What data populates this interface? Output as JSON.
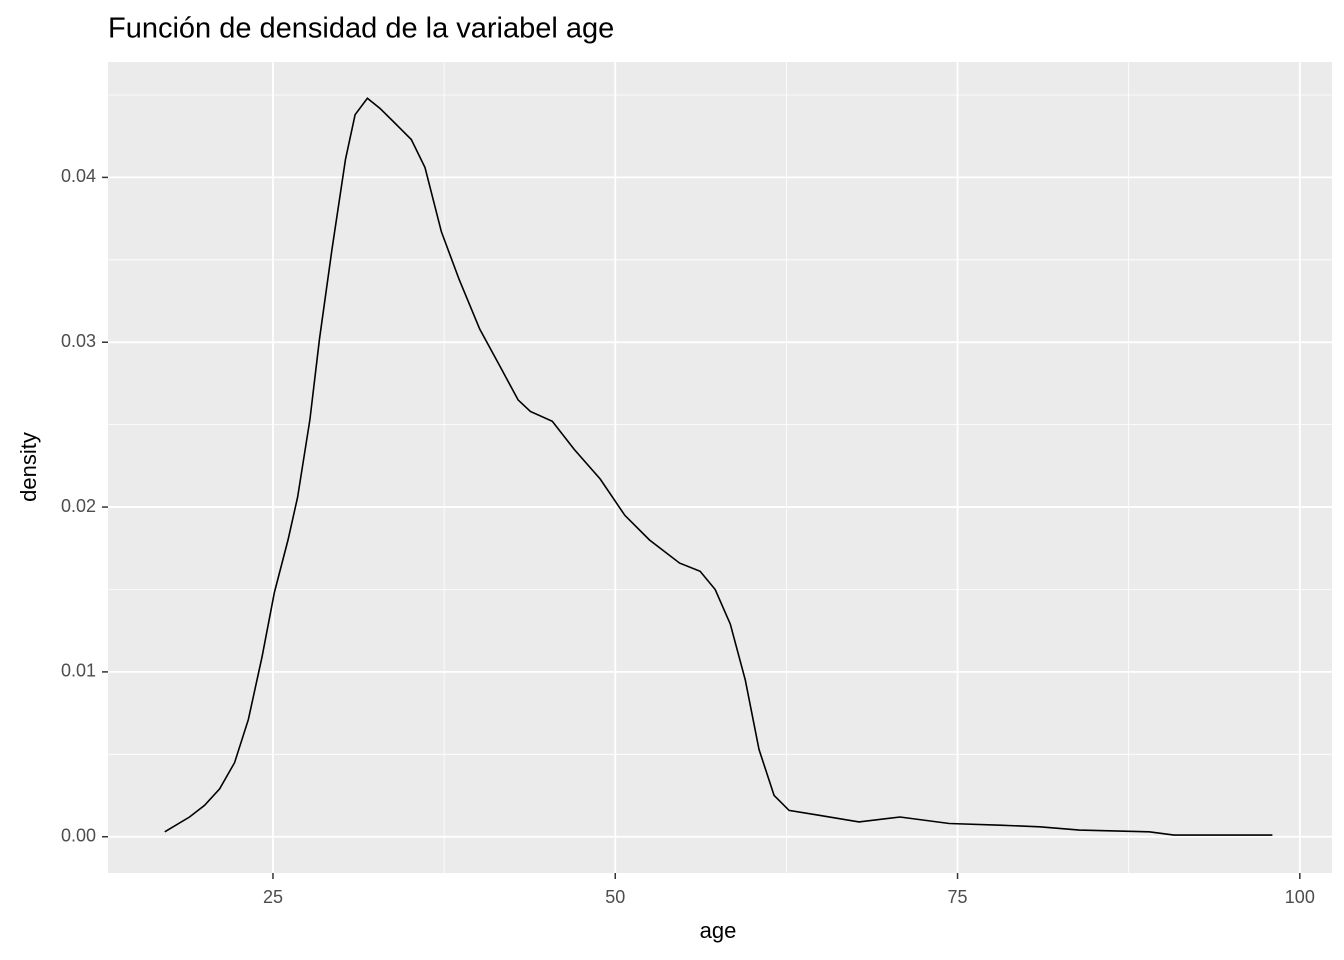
{
  "chart_data": {
    "type": "line",
    "title": "Función de densidad de la variabel age",
    "x_label": "age",
    "y_label": "density",
    "x": [
      17.1,
      18.9,
      20.0,
      21.1,
      22.2,
      23.2,
      24.2,
      25.1,
      26.1,
      26.8,
      27.7,
      28.4,
      29.3,
      30.3,
      31.0,
      31.9,
      32.8,
      33.9,
      35.1,
      36.1,
      37.3,
      38.6,
      40.1,
      41.6,
      42.9,
      43.8,
      45.4,
      47.0,
      48.9,
      50.7,
      52.5,
      54.7,
      56.2,
      57.3,
      58.4,
      59.5,
      60.5,
      61.6,
      62.7,
      64.9,
      67.8,
      70.8,
      74.4,
      78.1,
      81.0,
      83.9,
      89.0,
      90.8,
      98.0
    ],
    "series": [
      {
        "name": "density",
        "color": "#000000",
        "values": [
          0.0003,
          0.0012,
          0.0019,
          0.0029,
          0.0045,
          0.0071,
          0.0109,
          0.0148,
          0.018,
          0.0206,
          0.0253,
          0.0302,
          0.0356,
          0.0411,
          0.0438,
          0.0448,
          0.0442,
          0.0433,
          0.0423,
          0.0406,
          0.0367,
          0.0338,
          0.0308,
          0.0285,
          0.0265,
          0.0258,
          0.0252,
          0.0235,
          0.0217,
          0.0195,
          0.018,
          0.0166,
          0.0161,
          0.015,
          0.0129,
          0.0095,
          0.0053,
          0.0025,
          0.0016,
          0.0013,
          0.0009,
          0.0012,
          0.0008,
          0.0007,
          0.0006,
          0.0004,
          0.0003,
          0.0001,
          0.0001
        ]
      }
    ],
    "xlim": [
      12.95,
      102.35
    ],
    "ylim": [
      -0.0022,
      0.047
    ],
    "xticks": [
      25,
      50,
      75,
      100
    ],
    "yticks": [
      {
        "value": 0,
        "label": "0.00"
      },
      {
        "value": 0.01,
        "label": "0.01"
      },
      {
        "value": 0.02,
        "label": "0.02"
      },
      {
        "value": 0.03,
        "label": "0.03"
      },
      {
        "value": 0.04,
        "label": "0.04"
      }
    ],
    "grid": true,
    "panel_color": "#ebebeb"
  }
}
